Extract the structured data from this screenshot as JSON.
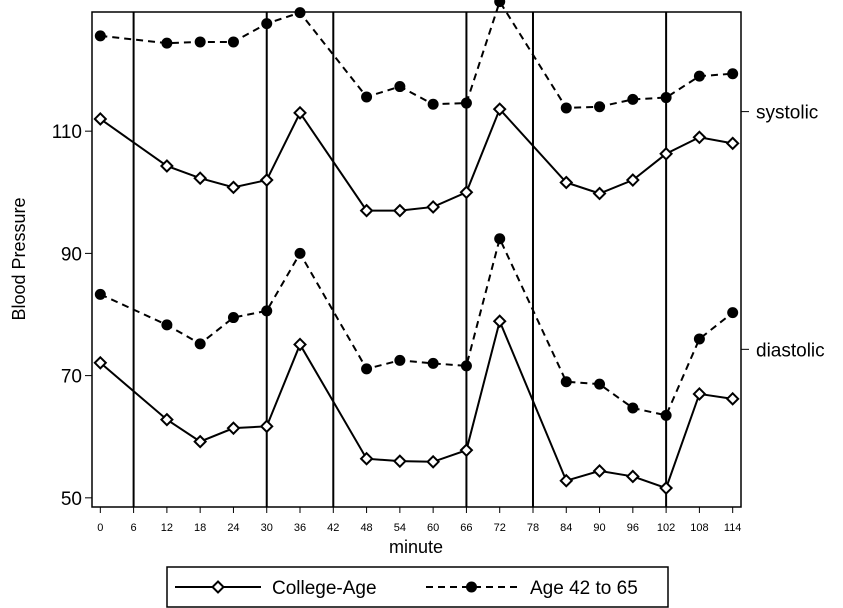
{
  "chart_data": {
    "type": "line",
    "xlabel": "minute",
    "ylabel": "Blood Pressure",
    "x_ticks": [
      0,
      6,
      12,
      18,
      24,
      30,
      36,
      42,
      48,
      54,
      60,
      66,
      72,
      78,
      84,
      90,
      96,
      102,
      108,
      114
    ],
    "y_ticks": [
      50,
      70,
      90,
      110
    ],
    "xlim": [
      -1.5,
      115.5
    ],
    "ylim": [
      48.5,
      129.5
    ],
    "vertical_reference_lines": [
      6,
      30,
      42,
      66,
      78,
      102
    ],
    "right_axis_labels": [
      {
        "label": "systolic",
        "y": 113.2
      },
      {
        "label": "diastolic",
        "y": 74.3
      }
    ],
    "series": [
      {
        "name": "College-Age",
        "group": "systolic",
        "style": "solid",
        "marker": "diamond",
        "x": [
          0,
          12,
          18,
          24,
          30,
          36,
          48,
          54,
          60,
          66,
          72,
          84,
          90,
          96,
          102,
          108,
          114
        ],
        "values": [
          112.0,
          104.3,
          102.3,
          100.8,
          102.0,
          113.0,
          97.0,
          97.0,
          97.6,
          100.0,
          113.6,
          101.6,
          99.8,
          102.0,
          106.3,
          109.0,
          108.0
        ]
      },
      {
        "name": "Age 42 to 65",
        "group": "systolic",
        "style": "dashed",
        "marker": "circle",
        "x": [
          0,
          12,
          18,
          24,
          30,
          36,
          48,
          54,
          60,
          66,
          72,
          84,
          90,
          96,
          102,
          108,
          114
        ],
        "values": [
          125.6,
          124.4,
          124.6,
          124.6,
          127.6,
          129.4,
          115.6,
          117.3,
          114.4,
          114.6,
          131.2,
          113.8,
          114.0,
          115.2,
          115.5,
          119.0,
          119.4
        ]
      },
      {
        "name": "College-Age",
        "group": "diastolic",
        "style": "solid",
        "marker": "diamond",
        "x": [
          0,
          12,
          18,
          24,
          30,
          36,
          48,
          54,
          60,
          66,
          72,
          84,
          90,
          96,
          102,
          108,
          114
        ],
        "values": [
          72.1,
          62.8,
          59.2,
          61.4,
          61.7,
          75.1,
          56.4,
          56.0,
          55.9,
          57.8,
          78.9,
          52.8,
          54.4,
          53.5,
          51.6,
          67.0,
          66.2
        ]
      },
      {
        "name": "Age 42 to 65",
        "group": "diastolic",
        "style": "dashed",
        "marker": "circle",
        "x": [
          0,
          12,
          18,
          24,
          30,
          36,
          48,
          54,
          60,
          66,
          72,
          84,
          90,
          96,
          102,
          108,
          114
        ],
        "values": [
          83.3,
          78.3,
          75.2,
          79.5,
          80.6,
          90.0,
          71.1,
          72.5,
          72.0,
          71.6,
          92.4,
          69.0,
          68.6,
          64.7,
          63.5,
          76.0,
          80.3
        ]
      }
    ],
    "legend": {
      "placement": "bottom",
      "entries": [
        {
          "label": "College-Age",
          "style": "solid",
          "marker": "diamond"
        },
        {
          "label": "Age 42 to 65",
          "style": "dashed",
          "marker": "circle"
        }
      ]
    },
    "colors": {
      "line": "#000000",
      "background": "#ffffff"
    },
    "grid": false
  }
}
